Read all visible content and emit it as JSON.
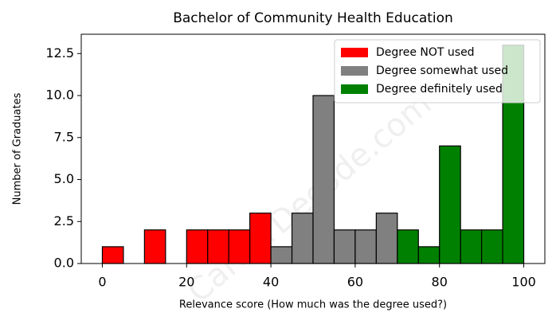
{
  "chart_data": {
    "type": "histogram",
    "title": "Bachelor of Community Health Education",
    "x_label": "Relevance score (How much was the degree used?)",
    "y_label": "Number of Graduates",
    "watermark": "CareerDecode.com",
    "series": [
      {
        "name": "Degree NOT used",
        "color": "#ff0000",
        "bins": [
          0,
          5,
          10,
          15,
          20,
          25,
          30,
          35,
          40
        ],
        "values": [
          1,
          0,
          2,
          0,
          2,
          2,
          2,
          3
        ]
      },
      {
        "name": "Degree somewhat used",
        "color": "#808080",
        "bins": [
          40,
          45,
          50,
          55,
          60,
          65,
          70
        ],
        "values": [
          1,
          3,
          10,
          2,
          2,
          3
        ]
      },
      {
        "name": "Degree definitely used",
        "color": "#008000",
        "bins": [
          70,
          75,
          80,
          85,
          90,
          95,
          100
        ],
        "values": [
          2,
          1,
          7,
          2,
          2,
          13
        ]
      }
    ],
    "xlim": [
      -5,
      105
    ],
    "xticks": [
      0,
      20,
      40,
      60,
      80,
      100
    ],
    "ylim": [
      0,
      13.65
    ],
    "yticks": [
      {
        "value": 0,
        "label": "0.0"
      },
      {
        "value": 2.5,
        "label": "2.5"
      },
      {
        "value": 5,
        "label": "5.0"
      },
      {
        "value": 7.5,
        "label": "7.5"
      },
      {
        "value": 10,
        "label": "10.0"
      },
      {
        "value": 12.5,
        "label": "12.5"
      }
    ],
    "legend": "upper right"
  }
}
